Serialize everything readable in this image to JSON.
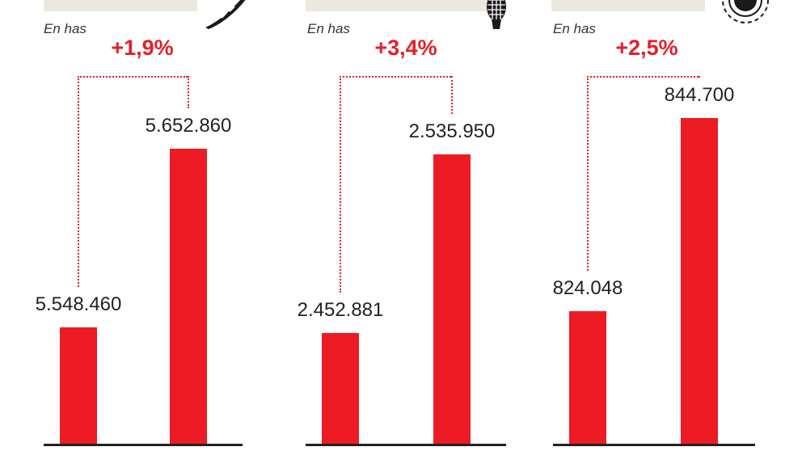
{
  "unit_label": "En has",
  "chart_data": [
    {
      "type": "bar",
      "unit": "En has",
      "change_label": "+1,9%",
      "values": [
        5548460,
        5652860
      ],
      "value_labels": [
        "5.548.460",
        "5.652.860"
      ]
    },
    {
      "type": "bar",
      "unit": "En has",
      "change_label": "+3,4%",
      "values": [
        2452881,
        2535950
      ],
      "value_labels": [
        "2.452.881",
        "2.535.950"
      ]
    },
    {
      "type": "bar",
      "unit": "En has",
      "change_label": "+2,5%",
      "values": [
        824048,
        844700
      ],
      "value_labels": [
        "824.048",
        "844.700"
      ]
    }
  ],
  "icons": [
    "crop-leaf-icon",
    "corn-ear-icon",
    "sunflower-icon"
  ],
  "colors": {
    "bar": "#ed1c24",
    "accent": "#e3202a",
    "header_bg": "#ece8df"
  }
}
